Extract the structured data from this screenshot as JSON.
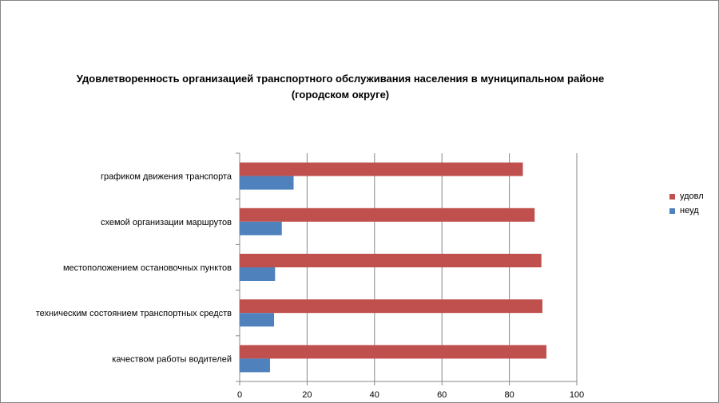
{
  "chart_data": {
    "type": "bar",
    "orientation": "horizontal",
    "title_line1": "Удовлетворенность организацией транспортного обслуживания населения в муниципальном районе",
    "title_line2": "(городском округе)",
    "categories": [
      "графиком движения транспорта",
      "схемой организации маршрутов",
      "местоположением остановочных пунктов",
      "техническим состоянием транспортных средств",
      "качеством работы водителей"
    ],
    "series": [
      {
        "name": "удовл",
        "color": "#c0504d",
        "values": [
          84,
          87.5,
          89.5,
          89.8,
          91
        ]
      },
      {
        "name": "неуд",
        "color": "#4f81bd",
        "values": [
          16,
          12.5,
          10.5,
          10.2,
          9
        ]
      }
    ],
    "xlim": [
      0,
      100
    ],
    "xticks": [
      0,
      20,
      40,
      60,
      80,
      100
    ],
    "xlabel": "",
    "ylabel": "",
    "grid": true,
    "legend_position": "right"
  }
}
